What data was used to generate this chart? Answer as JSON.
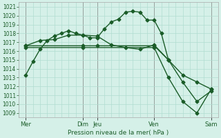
{
  "background_color": "#d5f0e8",
  "grid_color": "#b0ddd0",
  "line_color": "#1a5c28",
  "xlabel": "Pression niveau de la mer( hPa )",
  "ylim": [
    1008.5,
    1021.5
  ],
  "yticks": [
    1009,
    1010,
    1011,
    1012,
    1013,
    1014,
    1015,
    1016,
    1017,
    1018,
    1019,
    1020,
    1021
  ],
  "xlim": [
    0,
    28
  ],
  "major_xtick_pos": [
    1,
    9,
    11,
    19,
    27
  ],
  "major_xtick_labels": [
    "Mer",
    "Dim",
    "Jeu",
    "Ven",
    "Sam"
  ],
  "vline_pos": [
    1,
    9,
    11,
    19,
    27
  ],
  "line1_x": [
    1,
    2,
    3,
    4,
    5,
    6,
    7,
    8,
    9,
    10,
    11,
    12,
    13,
    14,
    15,
    16,
    17,
    18,
    19,
    20,
    21
  ],
  "line1_y": [
    1013.3,
    1014.8,
    1016.2,
    1017.2,
    1017.7,
    1018.0,
    1018.3,
    1018.0,
    1017.8,
    1017.5,
    1017.5,
    1018.5,
    1019.3,
    1019.6,
    1020.4,
    1020.5,
    1020.4,
    1019.5,
    1019.5,
    1018.0,
    1015.0
  ],
  "line2_x": [
    1,
    3,
    5,
    7,
    9,
    11,
    13,
    15,
    17,
    19,
    21,
    23,
    25,
    27
  ],
  "line2_y": [
    1016.6,
    1017.2,
    1017.3,
    1017.8,
    1017.8,
    1017.7,
    1016.7,
    1016.4,
    1016.2,
    1016.7,
    1015.0,
    1013.3,
    1012.5,
    1011.7
  ],
  "line3_x": [
    1,
    9,
    11,
    19,
    21,
    23,
    25,
    27
  ],
  "line3_y": [
    1016.6,
    1016.6,
    1016.6,
    1016.6,
    1015.0,
    1012.5,
    1010.3,
    1011.5
  ],
  "line4_x": [
    1,
    9,
    19,
    21,
    23,
    25,
    27
  ],
  "line4_y": [
    1016.4,
    1016.4,
    1016.4,
    1013.0,
    1010.3,
    1009.0,
    1011.7
  ],
  "marker": "D",
  "markersize": 2.5,
  "linewidth": 1.0,
  "ytick_fontsize": 5.5,
  "xtick_fontsize": 6.0,
  "xlabel_fontsize": 6.5
}
